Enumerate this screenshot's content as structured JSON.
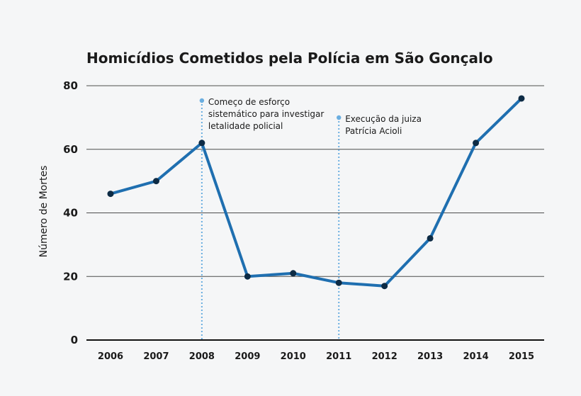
{
  "chart_data": {
    "type": "line",
    "title": "Homicídios Cometidos pela Polícia em São Gonçalo",
    "xlabel": "",
    "ylabel": "Número de Mortes",
    "categories": [
      "2006",
      "2007",
      "2008",
      "2009",
      "2010",
      "2011",
      "2012",
      "2013",
      "2014",
      "2015"
    ],
    "series": [
      {
        "values": [
          46,
          50,
          62,
          20,
          21,
          18,
          17,
          32,
          62,
          76
        ]
      }
    ],
    "ylim": [
      0,
      80
    ],
    "yticks": [
      0,
      20,
      40,
      60,
      80
    ],
    "grid": true,
    "annotations": [
      {
        "x": "2008",
        "lines": [
          "Começo de esforço",
          "sistemático para investigar",
          "letalidade policial"
        ]
      },
      {
        "x": "2011",
        "lines": [
          "Execução da juiza",
          "Patrícia Acioli"
        ]
      }
    ],
    "colors": {
      "line": "#1f6fb0",
      "marker": "#0d2b45",
      "annotation": "#6aaee0",
      "grid": "#4d4d4d",
      "background": "#f5f6f7"
    }
  }
}
